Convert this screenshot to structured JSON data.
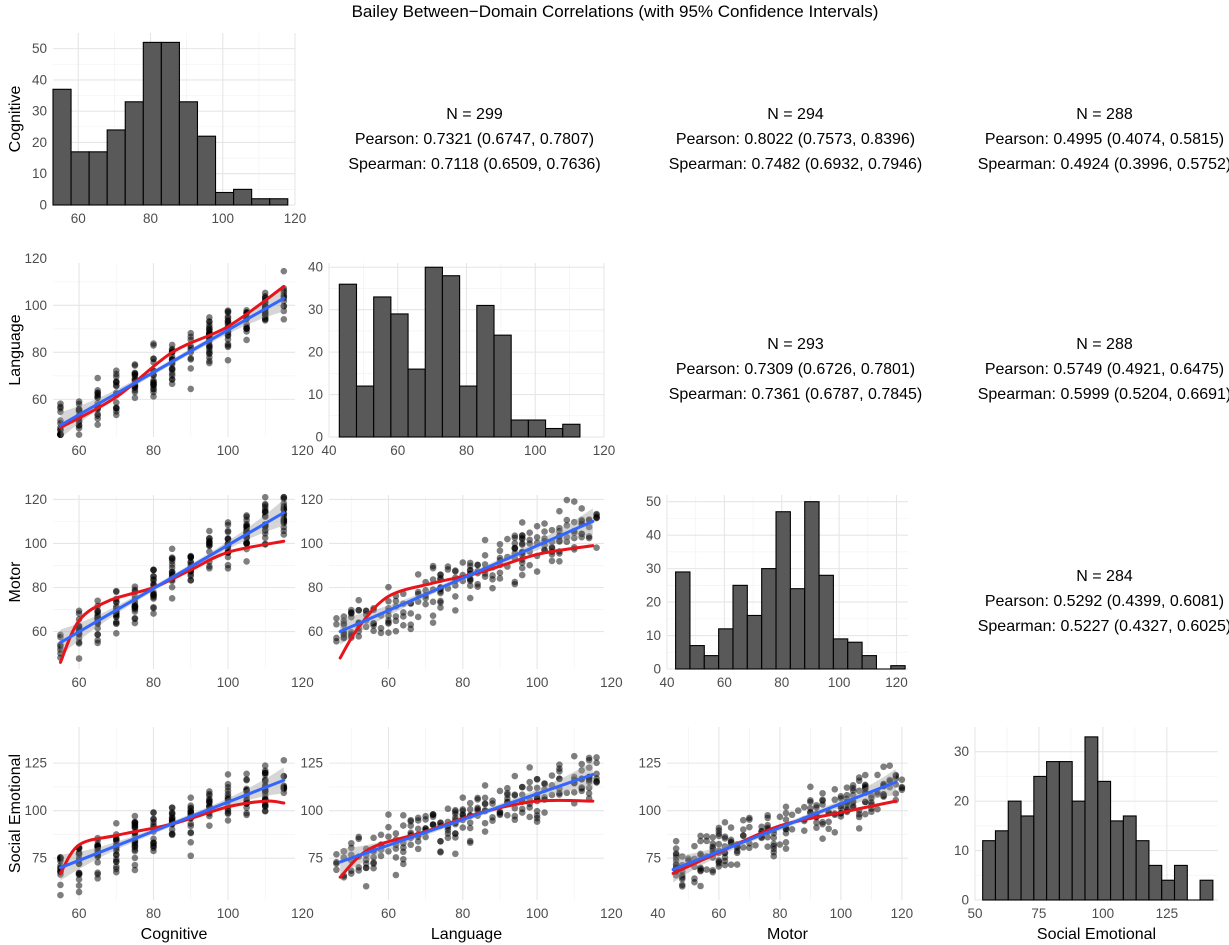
{
  "chart_data": {
    "type": "scatter-matrix",
    "title": "Bailey Between−Domain Correlations (with 95% Confidence Intervals)",
    "domains": [
      "Cognitive",
      "Language",
      "Motor",
      "Social Emotional"
    ],
    "axis_ranges": {
      "Cognitive": [
        53,
        118
      ],
      "Language": [
        44,
        118
      ],
      "Motor": [
        43,
        122
      ],
      "Social Emotional": [
        53,
        144
      ]
    },
    "axis_ticks": {
      "Cognitive": [
        60,
        80,
        100,
        120
      ],
      "Language": [
        40,
        60,
        80,
        100,
        120
      ],
      "Motor": [
        40,
        60,
        80,
        100,
        120
      ],
      "Social Emotional": [
        50,
        75,
        100,
        125
      ]
    },
    "scatter_y_ticks": {
      "Language": [
        60,
        80,
        100,
        120
      ],
      "Motor": [
        60,
        80,
        100,
        120
      ],
      "Social Emotional": [
        75,
        100,
        125
      ]
    },
    "histograms": [
      {
        "domain": "Cognitive",
        "bin_start": 53,
        "bin_width": 5,
        "counts": [
          37,
          17,
          17,
          24,
          33,
          52,
          52,
          33,
          22,
          4,
          5,
          2,
          2
        ],
        "ylim": [
          0,
          55
        ],
        "yticks": [
          0,
          10,
          20,
          30,
          40,
          50
        ],
        "xlim": [
          53,
          120
        ],
        "xticks": [
          60,
          80,
          100,
          120
        ]
      },
      {
        "domain": "Language",
        "bin_start": 43,
        "bin_width": 5,
        "counts": [
          36,
          12,
          33,
          29,
          16,
          40,
          38,
          12,
          31,
          24,
          4,
          4,
          2,
          3
        ],
        "ylim": [
          0,
          41
        ],
        "yticks": [
          0,
          10,
          20,
          30,
          40
        ],
        "xlim": [
          40,
          120
        ],
        "xticks": [
          40,
          60,
          80,
          100,
          120
        ]
      },
      {
        "domain": "Motor",
        "bin_start": 43,
        "bin_width": 5,
        "counts": [
          29,
          7,
          4,
          12,
          25,
          16,
          30,
          47,
          24,
          50,
          28,
          9,
          8,
          4,
          0,
          1
        ],
        "ylim": [
          0,
          52
        ],
        "yticks": [
          0,
          10,
          20,
          30,
          40,
          50
        ],
        "xlim": [
          40,
          124
        ],
        "xticks": [
          40,
          60,
          80,
          100,
          120
        ]
      },
      {
        "domain": "Social Emotional",
        "bin_start": 53,
        "bin_width": 5,
        "counts": [
          12,
          14,
          20,
          17,
          25,
          28,
          28,
          20,
          33,
          24,
          16,
          17,
          12,
          7,
          4,
          7,
          0,
          4
        ],
        "ylim": [
          0,
          35
        ],
        "yticks": [
          0,
          10,
          20,
          30
        ],
        "xlim": [
          50,
          145
        ],
        "xticks": [
          50,
          75,
          100,
          125
        ]
      }
    ],
    "correlations": [
      {
        "pair": [
          "Cognitive",
          "Language"
        ],
        "n": "N = 299",
        "pearson": "Pearson: 0.7321 (0.6747, 0.7807)",
        "spearman": "Spearman: 0.7118 (0.6509, 0.7636)"
      },
      {
        "pair": [
          "Cognitive",
          "Motor"
        ],
        "n": "N = 294",
        "pearson": "Pearson: 0.8022 (0.7573, 0.8396)",
        "spearman": "Spearman: 0.7482 (0.6932, 0.7946)"
      },
      {
        "pair": [
          "Cognitive",
          "Social Emotional"
        ],
        "n": "N = 288",
        "pearson": "Pearson: 0.4995 (0.4074, 0.5815)",
        "spearman": "Spearman: 0.4924 (0.3996, 0.5752)"
      },
      {
        "pair": [
          "Language",
          "Motor"
        ],
        "n": "N = 293",
        "pearson": "Pearson: 0.7309 (0.6726, 0.7801)",
        "spearman": "Spearman: 0.7361 (0.6787, 0.7845)"
      },
      {
        "pair": [
          "Language",
          "Social Emotional"
        ],
        "n": "N = 288",
        "pearson": "Pearson: 0.5749 (0.4921, 0.6475)",
        "spearman": "Spearman: 0.5999 (0.5204, 0.6691)"
      },
      {
        "pair": [
          "Motor",
          "Social Emotional"
        ],
        "n": "N = 284",
        "pearson": "Pearson: 0.5292 (0.4399, 0.6081)",
        "spearman": "Spearman: 0.5227 (0.4327, 0.6025)"
      }
    ],
    "scatter_panels": [
      {
        "x": "Cognitive",
        "y": "Language",
        "lm": [
          [
            55,
            49
          ],
          [
            115,
            103
          ]
        ],
        "loess": [
          [
            55,
            48
          ],
          [
            70,
            61
          ],
          [
            85,
            80
          ],
          [
            100,
            91
          ],
          [
            115,
            108
          ]
        ]
      },
      {
        "x": "Cognitive",
        "y": "Motor",
        "lm": [
          [
            55,
            55
          ],
          [
            115,
            114
          ]
        ],
        "loess": [
          [
            55,
            46
          ],
          [
            60,
            65
          ],
          [
            68,
            74
          ],
          [
            80,
            80
          ],
          [
            90,
            88
          ],
          [
            100,
            96
          ],
          [
            115,
            101
          ]
        ]
      },
      {
        "x": "Language",
        "y": "Motor",
        "lm": [
          [
            47,
            60
          ],
          [
            115,
            110
          ]
        ],
        "loess": [
          [
            47,
            48
          ],
          [
            52,
            62
          ],
          [
            60,
            76
          ],
          [
            72,
            82
          ],
          [
            85,
            87
          ],
          [
            100,
            95
          ],
          [
            115,
            99
          ]
        ]
      },
      {
        "x": "Cognitive",
        "y": "Social Emotional",
        "lm": [
          [
            55,
            70
          ],
          [
            115,
            116
          ]
        ],
        "loess": [
          [
            55,
            67
          ],
          [
            60,
            82
          ],
          [
            70,
            87
          ],
          [
            85,
            93
          ],
          [
            100,
            102
          ],
          [
            110,
            105
          ],
          [
            115,
            104
          ]
        ]
      },
      {
        "x": "Language",
        "y": "Social Emotional",
        "lm": [
          [
            47,
            73
          ],
          [
            115,
            119
          ]
        ],
        "loess": [
          [
            47,
            65
          ],
          [
            55,
            80
          ],
          [
            70,
            89
          ],
          [
            85,
            99
          ],
          [
            100,
            105
          ],
          [
            115,
            105
          ]
        ]
      },
      {
        "x": "Motor",
        "y": "Social Emotional",
        "lm": [
          [
            45,
            69
          ],
          [
            118,
            115
          ]
        ],
        "loess": [
          [
            45,
            67
          ],
          [
            60,
            78
          ],
          [
            80,
            92
          ],
          [
            100,
            99
          ],
          [
            118,
            105
          ]
        ]
      }
    ],
    "colors": {
      "bar_fill": "#595959",
      "bar_edge": "#000000",
      "points": "#000000",
      "lm_line": "#3366FF",
      "loess_line": "#E8141B",
      "ci_band": "#999999"
    },
    "grid": true,
    "legend": "none"
  }
}
